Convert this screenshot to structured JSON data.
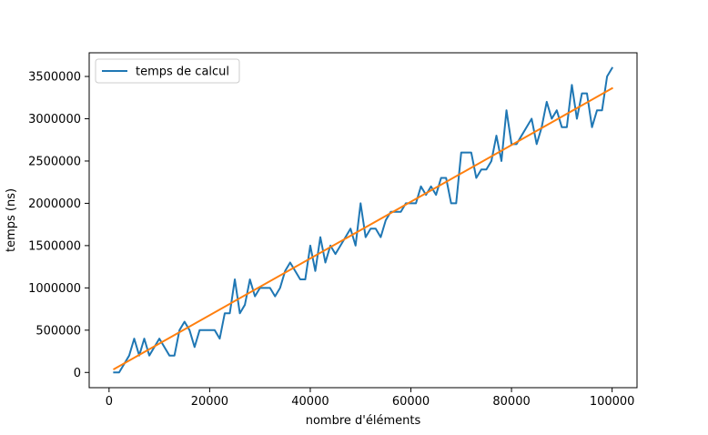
{
  "chart_data": {
    "type": "line",
    "title": "",
    "xlabel": "nombre d'éléments",
    "ylabel": "temps (ns)",
    "xlim": [
      -3950,
      104950
    ],
    "ylim": [
      -180000,
      3780000
    ],
    "x_ticks": [
      0,
      20000,
      40000,
      60000,
      80000,
      100000
    ],
    "y_ticks": [
      0,
      500000,
      1000000,
      1500000,
      2000000,
      2500000,
      3000000,
      3500000
    ],
    "x_tick_labels": [
      "0",
      "20000",
      "40000",
      "60000",
      "80000",
      "100000"
    ],
    "y_tick_labels": [
      "0",
      "500000",
      "1000000",
      "1500000",
      "2000000",
      "2500000",
      "3000000",
      "3500000"
    ],
    "legend": {
      "position": "upper left",
      "entries": [
        "temps de calcul"
      ]
    },
    "grid": false,
    "series": [
      {
        "name": "temps de calcul",
        "color": "#1f77b4",
        "x": [
          1000,
          2000,
          3000,
          4000,
          5000,
          6000,
          7000,
          8000,
          9000,
          10000,
          11000,
          12000,
          13000,
          14000,
          15000,
          16000,
          17000,
          18000,
          19000,
          20000,
          21000,
          22000,
          23000,
          24000,
          25000,
          26000,
          27000,
          28000,
          29000,
          30000,
          31000,
          32000,
          33000,
          34000,
          35000,
          36000,
          37000,
          38000,
          39000,
          40000,
          41000,
          42000,
          43000,
          44000,
          45000,
          46000,
          47000,
          48000,
          49000,
          50000,
          51000,
          52000,
          53000,
          54000,
          55000,
          56000,
          57000,
          58000,
          59000,
          60000,
          61000,
          62000,
          63000,
          64000,
          65000,
          66000,
          67000,
          68000,
          69000,
          70000,
          71000,
          72000,
          73000,
          74000,
          75000,
          76000,
          77000,
          78000,
          79000,
          80000,
          81000,
          82000,
          83000,
          84000,
          85000,
          86000,
          87000,
          88000,
          89000,
          90000,
          91000,
          92000,
          93000,
          94000,
          95000,
          96000,
          97000,
          98000,
          99000,
          100000
        ],
        "y": [
          0,
          0,
          100000,
          200000,
          400000,
          200000,
          400000,
          200000,
          300000,
          400000,
          300000,
          200000,
          200000,
          500000,
          600000,
          500000,
          300000,
          500000,
          500000,
          500000,
          500000,
          400000,
          700000,
          700000,
          1100000,
          700000,
          800000,
          1100000,
          900000,
          1000000,
          1000000,
          1000000,
          900000,
          1000000,
          1200000,
          1300000,
          1200000,
          1100000,
          1100000,
          1500000,
          1200000,
          1600000,
          1300000,
          1500000,
          1400000,
          1500000,
          1600000,
          1700000,
          1500000,
          2000000,
          1600000,
          1700000,
          1700000,
          1600000,
          1800000,
          1900000,
          1900000,
          1900000,
          2000000,
          2000000,
          2000000,
          2200000,
          2100000,
          2200000,
          2100000,
          2300000,
          2300000,
          2000000,
          2000000,
          2600000,
          2600000,
          2600000,
          2300000,
          2400000,
          2400000,
          2500000,
          2800000,
          2500000,
          3100000,
          2700000,
          2700000,
          2800000,
          2900000,
          3000000,
          2700000,
          2900000,
          3200000,
          3000000,
          3100000,
          2900000,
          2900000,
          3400000,
          3000000,
          3300000,
          3300000,
          2900000,
          3100000,
          3100000,
          3500000,
          3600000
        ]
      },
      {
        "color": "#ff7f0e",
        "x": [
          1000,
          100000
        ],
        "y": [
          40000,
          3360000
        ]
      }
    ]
  }
}
